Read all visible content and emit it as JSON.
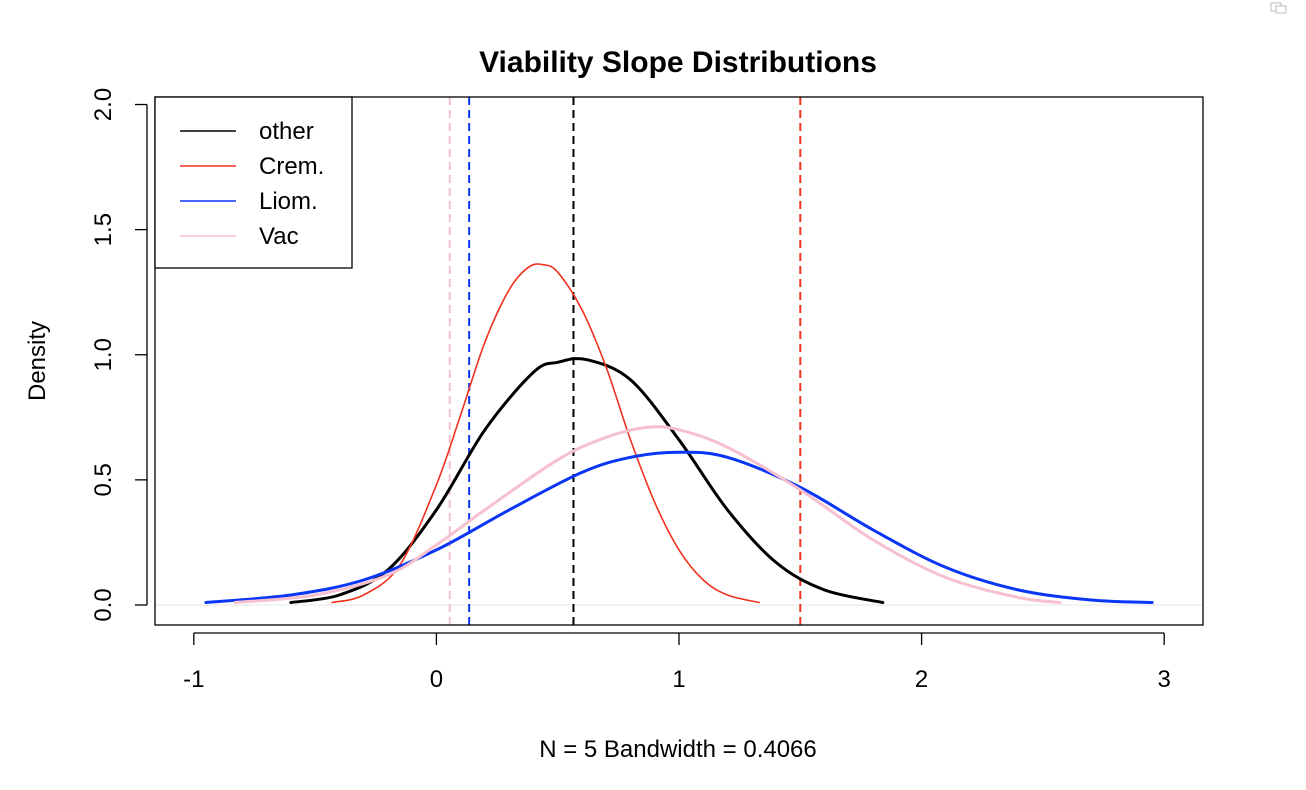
{
  "chart_data": {
    "type": "line",
    "title": "Viability Slope Distributions",
    "xlabel": "N = 5   Bandwidth = 0.4066",
    "ylabel": "Density",
    "xlim": [
      -1.16,
      3.16
    ],
    "ylim": [
      -0.08,
      2.03
    ],
    "xticks": [
      -1,
      0,
      1,
      2,
      3
    ],
    "xtick_labels": [
      "-1",
      "0",
      "1",
      "2",
      "3"
    ],
    "yticks": [
      0.0,
      0.5,
      1.0,
      1.5,
      2.0
    ],
    "ytick_labels": [
      "0.0",
      "0.5",
      "1.0",
      "1.5",
      "2.0"
    ],
    "grid": false,
    "legend": {
      "position": "top-left",
      "entries": [
        "other",
        "Crem.",
        "Liom.",
        "Vac"
      ]
    },
    "series": [
      {
        "name": "other",
        "color": "#000000",
        "line_width": 3.0,
        "mean_line": 0.565,
        "x": [
          -0.6,
          -0.4,
          -0.2,
          0.0,
          0.2,
          0.4,
          0.5,
          0.62,
          0.8,
          1.0,
          1.2,
          1.4,
          1.6,
          1.84
        ],
        "y": [
          0.01,
          0.04,
          0.14,
          0.38,
          0.7,
          0.93,
          0.97,
          0.98,
          0.9,
          0.66,
          0.38,
          0.17,
          0.06,
          0.01
        ]
      },
      {
        "name": "Crem.",
        "color": "#f03220",
        "line_width": 1.6,
        "mean_line": 1.5,
        "x": [
          -0.43,
          -0.3,
          -0.15,
          0.0,
          0.1,
          0.2,
          0.3,
          0.38,
          0.44,
          0.5,
          0.6,
          0.7,
          0.8,
          0.9,
          1.0,
          1.1,
          1.2,
          1.33
        ],
        "y": [
          0.01,
          0.04,
          0.16,
          0.48,
          0.76,
          1.05,
          1.26,
          1.35,
          1.36,
          1.33,
          1.18,
          0.95,
          0.66,
          0.41,
          0.22,
          0.1,
          0.04,
          0.01
        ]
      },
      {
        "name": "Liom.",
        "color": "#0a36f5",
        "line_width": 3.0,
        "mean_line": 0.135,
        "x": [
          -0.95,
          -0.6,
          -0.3,
          0.0,
          0.3,
          0.6,
          0.8,
          1.0,
          1.2,
          1.5,
          1.8,
          2.1,
          2.4,
          2.7,
          2.95
        ],
        "y": [
          0.01,
          0.04,
          0.1,
          0.22,
          0.38,
          0.53,
          0.59,
          0.61,
          0.59,
          0.47,
          0.3,
          0.15,
          0.06,
          0.02,
          0.01
        ]
      },
      {
        "name": "Vac",
        "color": "#f7c0ce",
        "line_width": 3.0,
        "mean_line": 0.055,
        "x": [
          -0.83,
          -0.5,
          -0.2,
          0.0,
          0.2,
          0.5,
          0.7,
          0.87,
          1.0,
          1.2,
          1.5,
          1.8,
          2.1,
          2.4,
          2.57
        ],
        "y": [
          0.01,
          0.04,
          0.12,
          0.24,
          0.38,
          0.58,
          0.67,
          0.71,
          0.7,
          0.63,
          0.46,
          0.26,
          0.11,
          0.03,
          0.01
        ]
      }
    ],
    "colors": {
      "axis": "#000000",
      "background": "#ffffff",
      "zero_line": "#e6e6e6"
    }
  }
}
